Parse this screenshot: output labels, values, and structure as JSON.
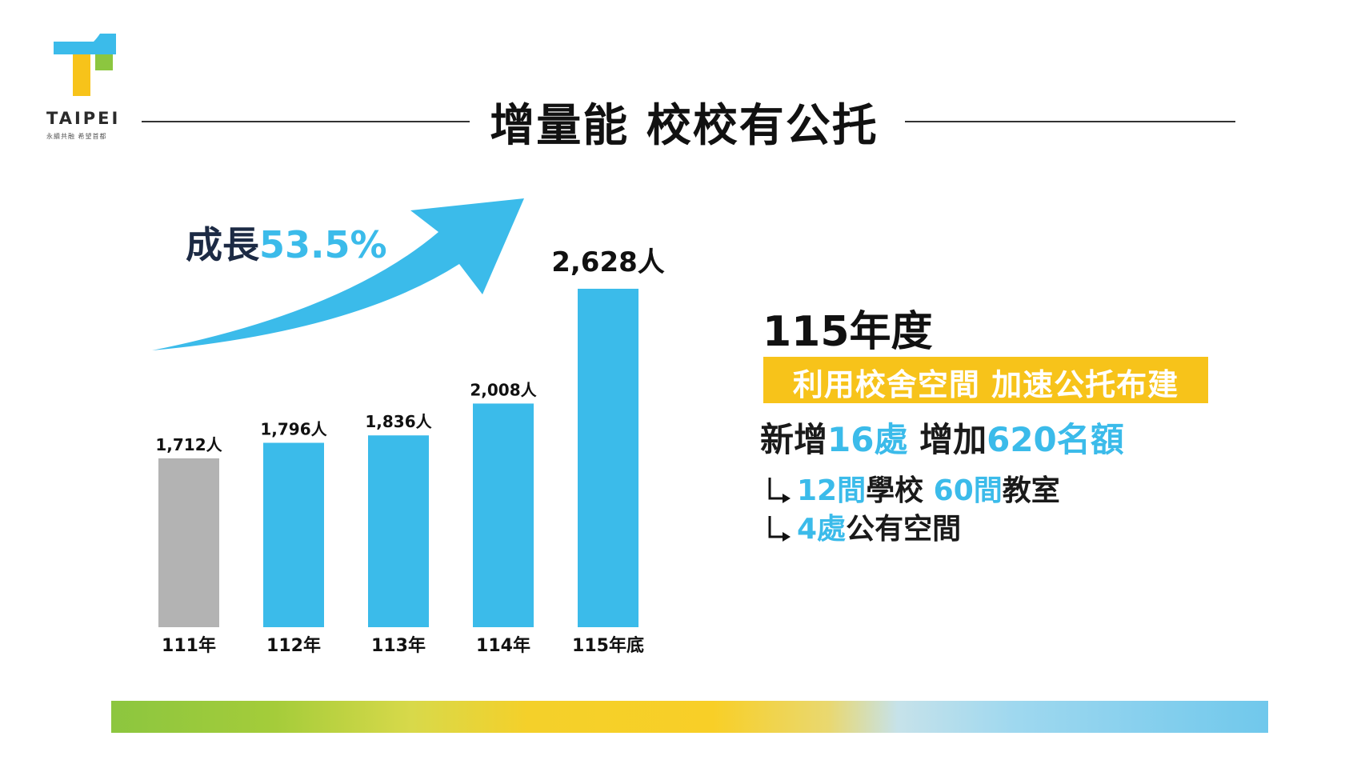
{
  "logo": {
    "text": "TAIPEI",
    "tagline": "永續共融 希望首都"
  },
  "title": "增量能 校校有公托",
  "growth": {
    "label": "成長",
    "value": "53.5%"
  },
  "colors": {
    "accent_blue": "#3bbbea",
    "gray_bar": "#b3b3b3",
    "banner_yellow": "#f7c31a"
  },
  "chart_data": {
    "type": "bar",
    "categories": [
      "111年",
      "112年",
      "113年",
      "114年",
      "115年底"
    ],
    "values": [
      1712,
      1796,
      1836,
      2008,
      2628
    ],
    "value_labels": [
      "1,712人",
      "1,796人",
      "1,836人",
      "2,008人",
      "2,628人"
    ],
    "bar_colors": [
      "#b3b3b3",
      "#3bbbea",
      "#3bbbea",
      "#3bbbea",
      "#3bbbea"
    ],
    "ylim": [
      800,
      2900
    ],
    "annotation": "成長53.5%",
    "grid": false,
    "axes_visible": false
  },
  "panel": {
    "year": "115年度",
    "banner": "利用校舍空間 加速公托布建",
    "summary": {
      "p1": "新增",
      "p2": "16處",
      "p3": "增加",
      "p4": "620名額"
    },
    "sub1": {
      "p1": "12間",
      "p2": "學校 ",
      "p3": "60間",
      "p4": "教室"
    },
    "sub2": {
      "p1": "4處",
      "p2": "公有空間"
    }
  }
}
